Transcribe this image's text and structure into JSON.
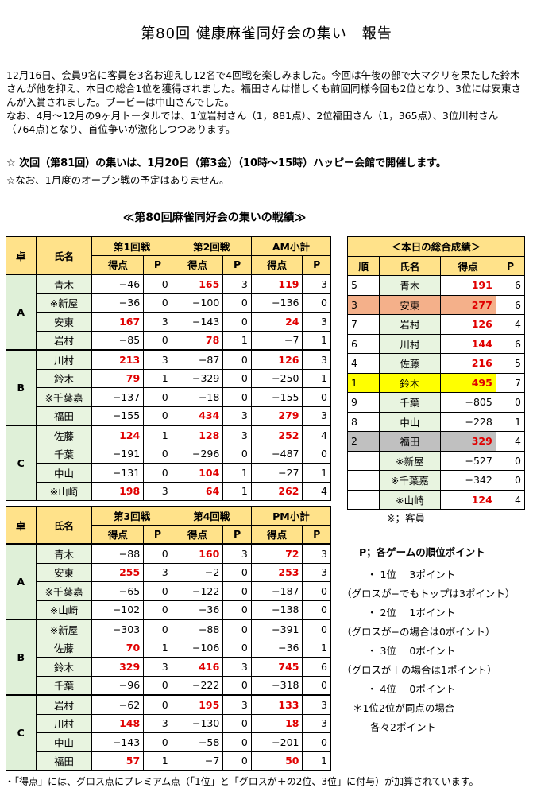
{
  "title": "第80回 健康麻雀同好会の集い　報告",
  "intro": [
    "12月16日、会員9名に客員を3名お迎えし12名で4回戦を楽しみました。今回は午後の部で大マクリを果たした鈴木さんが他を抑え、本日の総合1位を獲得されました。福田さんは惜しくも前回同様今回も2位となり、3位には安東さんが入賞されました。ブービーは中山さんでした。",
    "なお、4月～12月の9ヶ月トータルでは、1位岩村さん（1，881点）、2位福田さん（1，365点）、3位川村さん（764点)となり、首位争いが激化しつつあります。"
  ],
  "notice_next": "☆ 次回（第81回）の集いは、1月20日（第3金）（10時～15時）ハッピー会館で開催します。",
  "notice_open": "☆なお、1月度のオープン戦の予定はありません。",
  "results_title": "≪第80回麻雀同好会の集いの戦績≫",
  "am": {
    "headers": {
      "table": "卓",
      "name": "氏名",
      "g1": "第1回戦",
      "g2": "第2回戦",
      "sub": "AM小計",
      "score": "得点",
      "p": "P"
    },
    "rows": [
      {
        "table": "A",
        "name": "青木",
        "s1": "−46",
        "p1": "0",
        "s2": "165",
        "p2": "3",
        "st": "119",
        "pt": "3",
        "r1": false,
        "r2": true,
        "rt": true
      },
      {
        "table": "",
        "name": "※新屋",
        "s1": "−36",
        "p1": "0",
        "s2": "−100",
        "p2": "0",
        "st": "−136",
        "pt": "0",
        "r1": false,
        "r2": false,
        "rt": false
      },
      {
        "table": "",
        "name": "安東",
        "s1": "167",
        "p1": "3",
        "s2": "−143",
        "p2": "0",
        "st": "24",
        "pt": "3",
        "r1": true,
        "r2": false,
        "rt": true
      },
      {
        "table": "",
        "name": "岩村",
        "s1": "−85",
        "p1": "0",
        "s2": "78",
        "p2": "1",
        "st": "−7",
        "pt": "1",
        "r1": false,
        "r2": true,
        "rt": false
      },
      {
        "table": "B",
        "name": "川村",
        "s1": "213",
        "p1": "3",
        "s2": "−87",
        "p2": "0",
        "st": "126",
        "pt": "3",
        "r1": true,
        "r2": false,
        "rt": true
      },
      {
        "table": "",
        "name": "鈴木",
        "s1": "79",
        "p1": "1",
        "s2": "−329",
        "p2": "0",
        "st": "−250",
        "pt": "1",
        "r1": true,
        "r2": false,
        "rt": false
      },
      {
        "table": "",
        "name": "※千葉嘉",
        "s1": "−137",
        "p1": "0",
        "s2": "−18",
        "p2": "0",
        "st": "−155",
        "pt": "0",
        "r1": false,
        "r2": false,
        "rt": false
      },
      {
        "table": "",
        "name": "福田",
        "s1": "−155",
        "p1": "0",
        "s2": "434",
        "p2": "3",
        "st": "279",
        "pt": "3",
        "r1": false,
        "r2": true,
        "rt": true
      },
      {
        "table": "C",
        "name": "佐藤",
        "s1": "124",
        "p1": "1",
        "s2": "128",
        "p2": "3",
        "st": "252",
        "pt": "4",
        "r1": true,
        "r2": true,
        "rt": true
      },
      {
        "table": "",
        "name": "千葉",
        "s1": "−191",
        "p1": "0",
        "s2": "−296",
        "p2": "0",
        "st": "−487",
        "pt": "0",
        "r1": false,
        "r2": false,
        "rt": false
      },
      {
        "table": "",
        "name": "中山",
        "s1": "−131",
        "p1": "0",
        "s2": "104",
        "p2": "1",
        "st": "−27",
        "pt": "1",
        "r1": false,
        "r2": true,
        "rt": false
      },
      {
        "table": "",
        "name": "※山崎",
        "s1": "198",
        "p1": "3",
        "s2": "64",
        "p2": "1",
        "st": "262",
        "pt": "4",
        "r1": true,
        "r2": true,
        "rt": true
      }
    ]
  },
  "pm": {
    "headers": {
      "table": "卓",
      "name": "氏名",
      "g3": "第3回戦",
      "g4": "第4回戦",
      "sub": "PM小計",
      "score": "得点",
      "p": "P"
    },
    "rows": [
      {
        "table": "A",
        "name": "青木",
        "s1": "−88",
        "p1": "0",
        "s2": "160",
        "p2": "3",
        "st": "72",
        "pt": "3",
        "r1": false,
        "r2": true,
        "rt": true
      },
      {
        "table": "",
        "name": "安東",
        "s1": "255",
        "p1": "3",
        "s2": "−2",
        "p2": "0",
        "st": "253",
        "pt": "3",
        "r1": true,
        "r2": false,
        "rt": true
      },
      {
        "table": "",
        "name": "※千葉嘉",
        "s1": "−65",
        "p1": "0",
        "s2": "−122",
        "p2": "0",
        "st": "−187",
        "pt": "0",
        "r1": false,
        "r2": false,
        "rt": false
      },
      {
        "table": "",
        "name": "※山崎",
        "s1": "−102",
        "p1": "0",
        "s2": "−36",
        "p2": "0",
        "st": "−138",
        "pt": "0",
        "r1": false,
        "r2": false,
        "rt": false
      },
      {
        "table": "B",
        "name": "※新屋",
        "s1": "−303",
        "p1": "0",
        "s2": "−88",
        "p2": "0",
        "st": "−391",
        "pt": "0",
        "r1": false,
        "r2": false,
        "rt": false
      },
      {
        "table": "",
        "name": "佐藤",
        "s1": "70",
        "p1": "1",
        "s2": "−106",
        "p2": "0",
        "st": "−36",
        "pt": "1",
        "r1": true,
        "r2": false,
        "rt": false
      },
      {
        "table": "",
        "name": "鈴木",
        "s1": "329",
        "p1": "3",
        "s2": "416",
        "p2": "3",
        "st": "745",
        "pt": "6",
        "r1": true,
        "r2": true,
        "rt": true
      },
      {
        "table": "",
        "name": "千葉",
        "s1": "−96",
        "p1": "0",
        "s2": "−222",
        "p2": "0",
        "st": "−318",
        "pt": "0",
        "r1": false,
        "r2": false,
        "rt": false
      },
      {
        "table": "C",
        "name": "岩村",
        "s1": "−62",
        "p1": "0",
        "s2": "195",
        "p2": "3",
        "st": "133",
        "pt": "3",
        "r1": false,
        "r2": true,
        "rt": true
      },
      {
        "table": "",
        "name": "川村",
        "s1": "148",
        "p1": "3",
        "s2": "−130",
        "p2": "0",
        "st": "18",
        "pt": "3",
        "r1": true,
        "r2": false,
        "rt": true
      },
      {
        "table": "",
        "name": "中山",
        "s1": "−143",
        "p1": "0",
        "s2": "−58",
        "p2": "0",
        "st": "−201",
        "pt": "0",
        "r1": false,
        "r2": false,
        "rt": false
      },
      {
        "table": "",
        "name": "福田",
        "s1": "57",
        "p1": "1",
        "s2": "−7",
        "p2": "0",
        "st": "50",
        "pt": "1",
        "r1": true,
        "r2": false,
        "rt": true
      }
    ]
  },
  "ranking": {
    "title": "＜本日の総合成績＞",
    "headers": {
      "rank": "順",
      "name": "氏名",
      "score": "得点",
      "p": "P"
    },
    "rows": [
      {
        "rank": "5",
        "name": "青木",
        "score": "191",
        "p": "6",
        "red": true,
        "hl": ""
      },
      {
        "rank": "3",
        "name": "安東",
        "score": "277",
        "p": "6",
        "red": true,
        "hl": "org"
      },
      {
        "rank": "7",
        "name": "岩村",
        "score": "126",
        "p": "4",
        "red": true,
        "hl": ""
      },
      {
        "rank": "6",
        "name": "川村",
        "score": "144",
        "p": "6",
        "red": true,
        "hl": ""
      },
      {
        "rank": "4",
        "name": "佐藤",
        "score": "216",
        "p": "5",
        "red": true,
        "hl": ""
      },
      {
        "rank": "1",
        "name": "鈴木",
        "score": "495",
        "p": "7",
        "red": true,
        "hl": "yel"
      },
      {
        "rank": "9",
        "name": "千葉",
        "score": "−805",
        "p": "0",
        "red": false,
        "hl": ""
      },
      {
        "rank": "8",
        "name": "中山",
        "score": "−228",
        "p": "1",
        "red": false,
        "hl": ""
      },
      {
        "rank": "2",
        "name": "福田",
        "score": "329",
        "p": "4",
        "red": true,
        "hl": "gry"
      },
      {
        "rank": "",
        "name": "※新屋",
        "score": "−527",
        "p": "0",
        "red": false,
        "hl": ""
      },
      {
        "rank": "",
        "name": "※千葉嘉",
        "score": "−342",
        "p": "0",
        "red": false,
        "hl": ""
      },
      {
        "rank": "",
        "name": "※山崎",
        "score": "124",
        "p": "4",
        "red": true,
        "hl": ""
      }
    ],
    "guest_note": "※；客員"
  },
  "legend": [
    "P；各ゲームの順位ポイント",
    "・ 1位　 3ポイント",
    "（グロスが−でもトップは3ポイント）",
    "・ 2位　 1ポイント",
    "（グロスが−の場合は0ポイント）",
    "・ 3位　 0ポイント",
    "（グロスが＋の場合は1ポイント）",
    "・ 4位　 0ポイント",
    "＊1位2位が同点の場合",
    "各々2ポイント"
  ],
  "footnote": "・「得点」には、グロス点にプレミアム点（「1位」と「グロスが＋の2位、3位」に付与）が加算されています。"
}
